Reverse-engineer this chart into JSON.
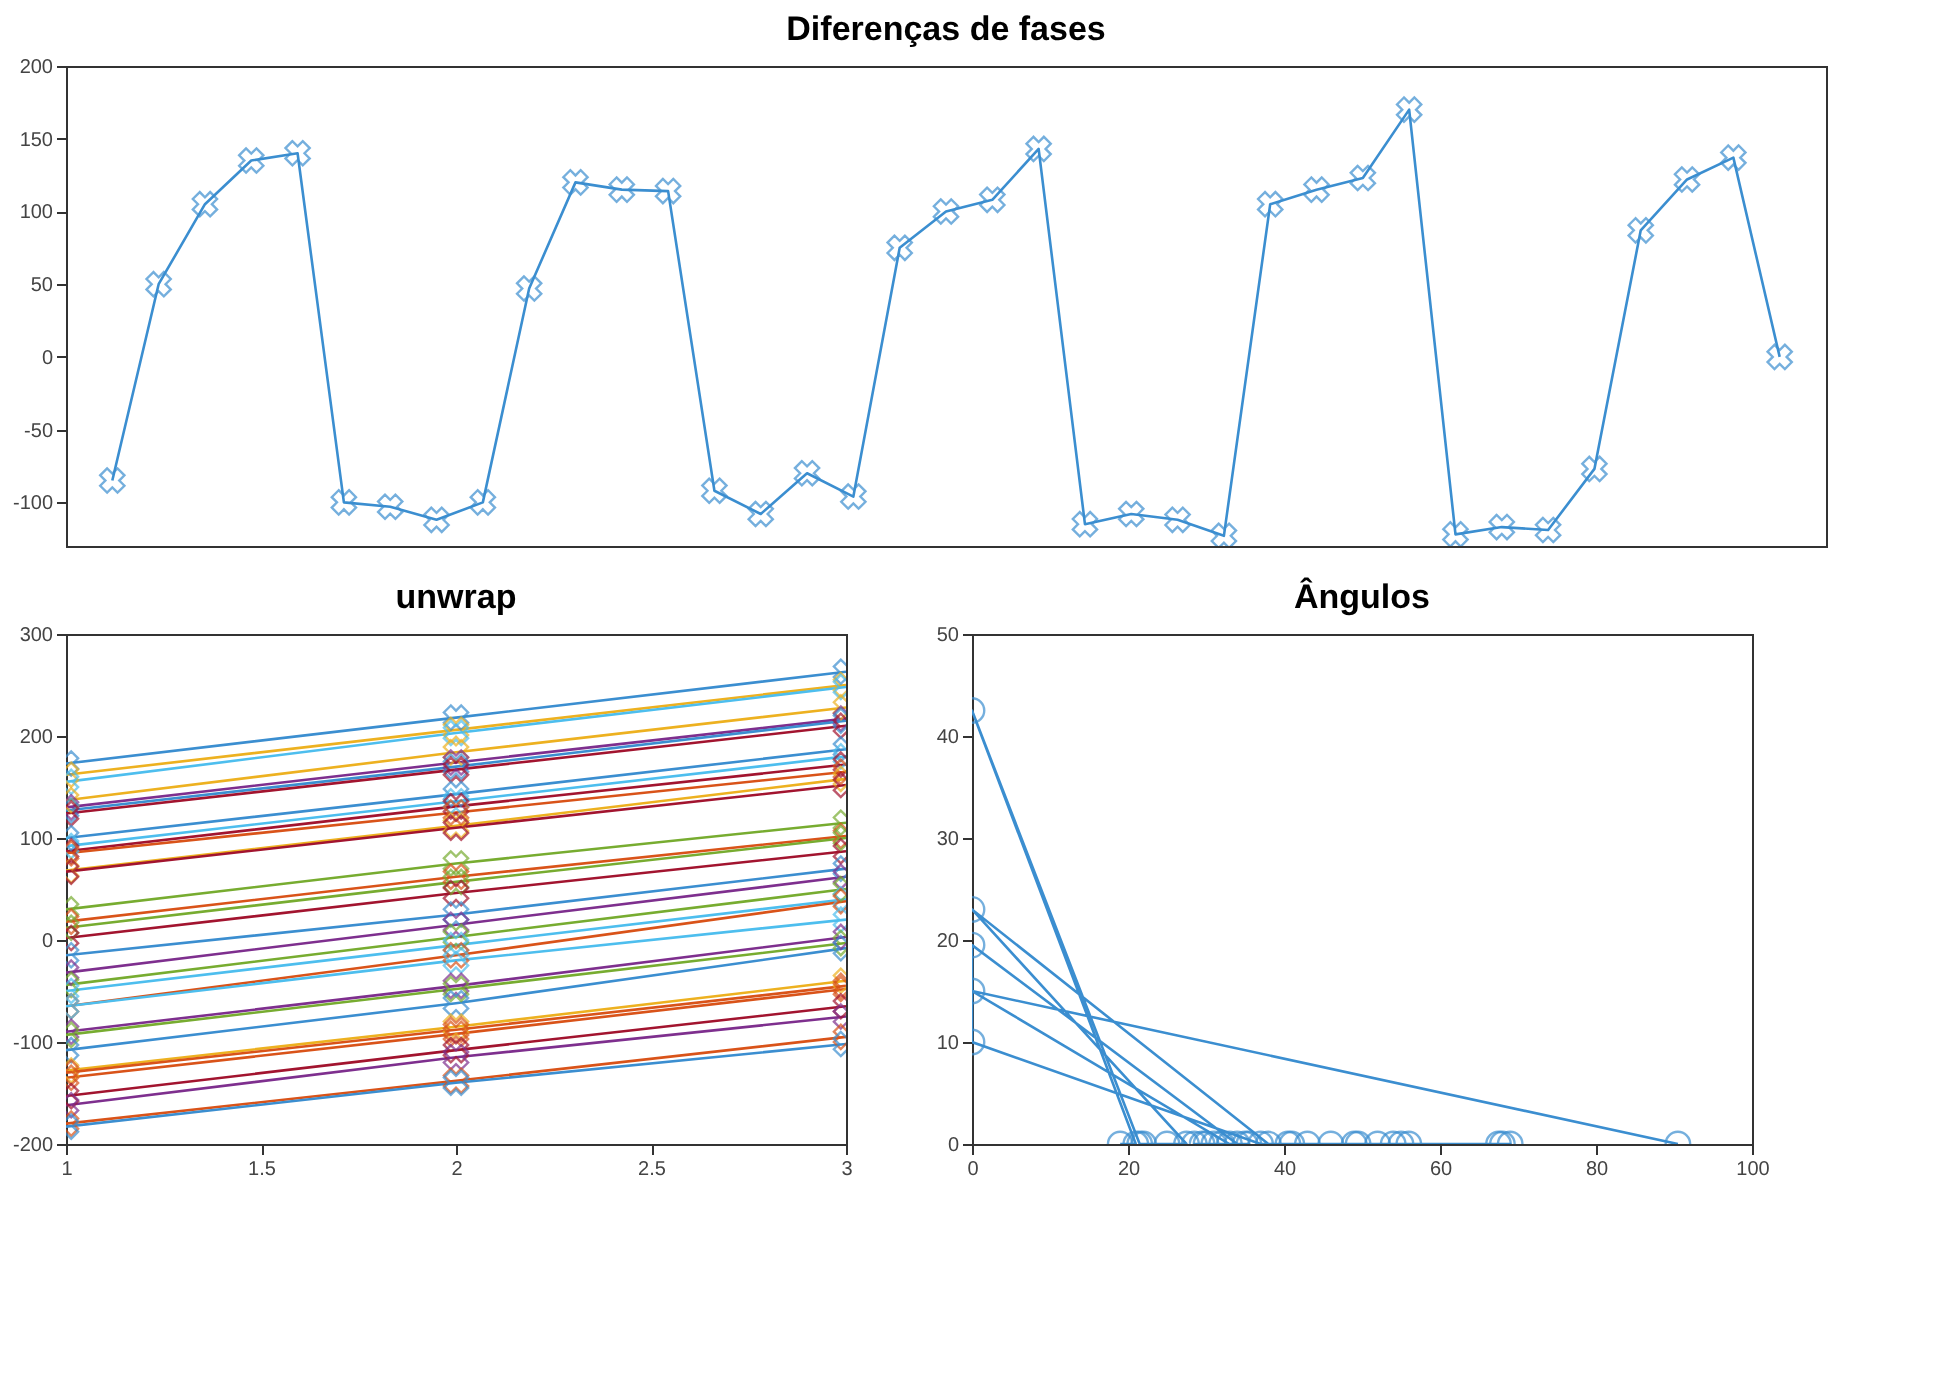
{
  "chart_data": [
    {
      "type": "line",
      "title": "Diferenças de fases",
      "marker": "cross",
      "tick_labels": "y",
      "categories": [
        null,
        null,
        null,
        null,
        null,
        null,
        null,
        null,
        null,
        null,
        null,
        null,
        null,
        null,
        null,
        null,
        null,
        null,
        null,
        null,
        null,
        null,
        null,
        null,
        null,
        null,
        null,
        null,
        null,
        null,
        null,
        null,
        null,
        null,
        null,
        null,
        null
      ],
      "ylim": [
        -130,
        200
      ],
      "yticks": [
        -100,
        -50,
        0,
        50,
        100,
        150,
        200
      ],
      "series": [
        {
          "color": "#3b8ed0",
          "values": [
            -85,
            50,
            105,
            135,
            140,
            -100,
            -103,
            -112,
            -100,
            47,
            120,
            115,
            114,
            -92,
            -108,
            -80,
            -96,
            75,
            100,
            108,
            143,
            -115,
            -108,
            -112,
            -123,
            105,
            115,
            123,
            170,
            -122,
            -117,
            -119,
            -77,
            87,
            122,
            137,
            0
          ]
        }
      ]
    },
    {
      "type": "line",
      "title": "unwrap",
      "marker": "cross",
      "x": [
        1,
        2,
        3
      ],
      "xlim": [
        1,
        3
      ],
      "xticks": [
        1,
        1.5,
        2,
        2.5,
        3
      ],
      "ylim": [
        -200,
        300
      ],
      "yticks": [
        -200,
        -100,
        0,
        100,
        200,
        300
      ],
      "series": [
        {
          "color": "#3b8ed0",
          "values": [
            173,
            218,
            263
          ]
        },
        {
          "color": "#edb120",
          "values": [
            162,
            206,
            250
          ]
        },
        {
          "color": "#4dbeee",
          "values": [
            155,
            203,
            248
          ]
        },
        {
          "color": "#edb120",
          "values": [
            137,
            184,
            228
          ]
        },
        {
          "color": "#7e2f8e",
          "values": [
            130,
            174,
            217
          ]
        },
        {
          "color": "#3b8ed0",
          "values": [
            127,
            170,
            215
          ]
        },
        {
          "color": "#a2142f",
          "values": [
            124,
            167,
            210
          ]
        },
        {
          "color": "#3b8ed0",
          "values": [
            100,
            143,
            187
          ]
        },
        {
          "color": "#4dbeee",
          "values": [
            92,
            136,
            180
          ]
        },
        {
          "color": "#a2142f",
          "values": [
            87,
            131,
            172
          ]
        },
        {
          "color": "#d95319",
          "values": [
            85,
            125,
            165
          ]
        },
        {
          "color": "#edb120",
          "values": [
            68,
            112,
            158
          ]
        },
        {
          "color": "#a2142f",
          "values": [
            67,
            110,
            152
          ]
        },
        {
          "color": "#77ac30",
          "values": [
            30,
            75,
            115
          ]
        },
        {
          "color": "#d95319",
          "values": [
            18,
            62,
            102
          ]
        },
        {
          "color": "#77ac30",
          "values": [
            12,
            57,
            100
          ]
        },
        {
          "color": "#a2142f",
          "values": [
            2,
            46,
            87
          ]
        },
        {
          "color": "#3b8ed0",
          "values": [
            -15,
            25,
            70
          ]
        },
        {
          "color": "#7e2f8e",
          "values": [
            -32,
            15,
            62
          ]
        },
        {
          "color": "#77ac30",
          "values": [
            -44,
            3,
            50
          ]
        },
        {
          "color": "#4dbeee",
          "values": [
            -50,
            -5,
            40
          ]
        },
        {
          "color": "#d95319",
          "values": [
            -65,
            -15,
            38
          ]
        },
        {
          "color": "#4dbeee",
          "values": [
            -65,
            -20,
            20
          ]
        },
        {
          "color": "#7e2f8e",
          "values": [
            -90,
            -45,
            3
          ]
        },
        {
          "color": "#77ac30",
          "values": [
            -93,
            -48,
            -3
          ]
        },
        {
          "color": "#3b8ed0",
          "values": [
            -108,
            -62,
            -8
          ]
        },
        {
          "color": "#edb120",
          "values": [
            -128,
            -85,
            -40
          ]
        },
        {
          "color": "#d95319",
          "values": [
            -130,
            -88,
            -45
          ]
        },
        {
          "color": "#d95319",
          "values": [
            -135,
            -92,
            -48
          ]
        },
        {
          "color": "#a2142f",
          "values": [
            -153,
            -108,
            -65
          ]
        },
        {
          "color": "#7e2f8e",
          "values": [
            -162,
            -115,
            -75
          ]
        },
        {
          "color": "#d95319",
          "values": [
            -180,
            -138,
            -95
          ]
        },
        {
          "color": "#3b8ed0",
          "values": [
            -183,
            -140,
            -102
          ]
        }
      ]
    },
    {
      "type": "line",
      "title": "Ângulos",
      "marker": "circle",
      "xlim": [
        0,
        100
      ],
      "xticks": [
        0,
        20,
        40,
        60,
        80,
        100
      ],
      "ylim": [
        0,
        50
      ],
      "yticks": [
        0,
        10,
        20,
        30,
        40,
        50
      ],
      "series": [
        {
          "color": "#3b8ed0",
          "x": [
            19,
            21,
            0,
            21.5,
            22,
            25,
            27.5,
            0,
            38,
            40.5,
            41,
            43,
            46,
            49,
            49.5,
            52,
            54,
            55,
            56,
            67.5,
            68,
            69,
            37,
            0,
            0,
            34,
            35,
            35.5,
            28.5,
            29.5,
            30,
            31,
            32,
            33,
            0,
            90.5
          ],
          "values": [
            0,
            0,
            42.5,
            0,
            0,
            0,
            0,
            23,
            0,
            0,
            0,
            0,
            0,
            0,
            0,
            0,
            0,
            0,
            0,
            0,
            0,
            0,
            0,
            10,
            19.5,
            0,
            0,
            0,
            0,
            0,
            0,
            0,
            0,
            0,
            15,
            0
          ]
        }
      ]
    }
  ]
}
